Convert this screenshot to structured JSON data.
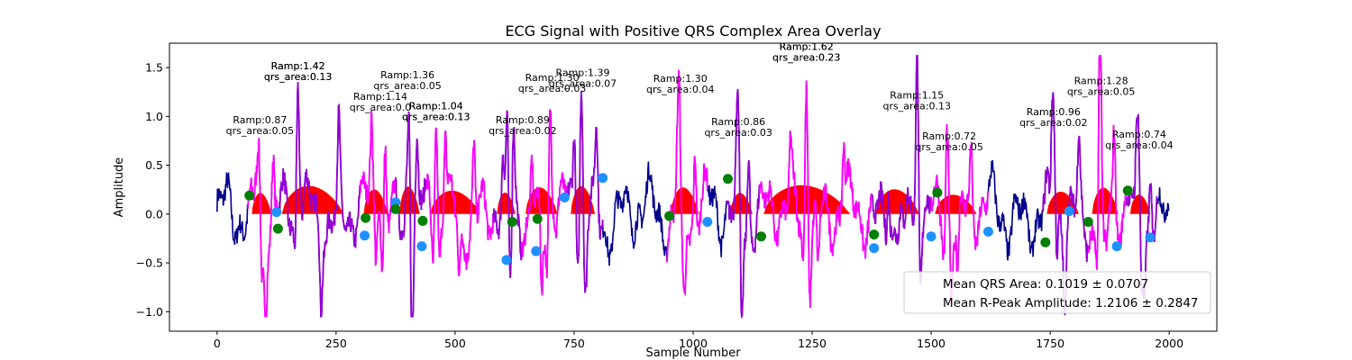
{
  "chart_data": {
    "type": "line",
    "title": "ECG Signal with Positive QRS Complex Area Overlay",
    "xlabel": "Sample Number",
    "ylabel": "Amplitude",
    "xlim": [
      -100,
      2100
    ],
    "ylim": [
      -1.2,
      1.75
    ],
    "xticks": [
      0,
      250,
      500,
      750,
      1000,
      1250,
      1500,
      1750,
      2000
    ],
    "yticks": [
      -1.0,
      -0.5,
      0.0,
      0.5,
      1.0,
      1.5
    ],
    "grid": false,
    "legend": {
      "placement": "lower-right",
      "entries": [
        "Mean QRS Area: 0.1019 ± 0.0707",
        "Mean R-Peak Amplitude: 1.2106 ± 0.2847"
      ]
    },
    "colors": {
      "signal": "#00008b",
      "qrs_overlay_a": "#ff00ff",
      "qrs_overlay_b": "#9400d3",
      "area_fill": "#ff0000",
      "q_point": "#1e90ff",
      "s_point": "#008000"
    },
    "segments": [
      {
        "x0": 65,
        "x1": 128,
        "peak": 87,
        "amp": 0.87
      },
      {
        "x0": 128,
        "x1": 300,
        "peak": 170,
        "amp": 1.42
      },
      {
        "x0": 300,
        "x1": 375,
        "peak": 340,
        "amp": 1.14
      },
      {
        "x0": 375,
        "x1": 440,
        "peak": 403,
        "amp": 1.36
      },
      {
        "x0": 440,
        "x1": 580,
        "peak": 460,
        "amp": 1.04
      },
      {
        "x0": 580,
        "x1": 640,
        "peak": 610,
        "amp": 0.89
      },
      {
        "x0": 640,
        "x1": 735,
        "peak": 700,
        "amp": 1.3
      },
      {
        "x0": 735,
        "x1": 810,
        "peak": 765,
        "amp": 1.39
      },
      {
        "x0": 945,
        "x1": 1030,
        "peak": 970,
        "amp": 1.3
      },
      {
        "x0": 1070,
        "x1": 1140,
        "peak": 1095,
        "amp": 0.86
      },
      {
        "x0": 1140,
        "x1": 1375,
        "peak": 1238,
        "amp": 1.62
      },
      {
        "x0": 1375,
        "x1": 1500,
        "peak": 1470,
        "amp": 1.15
      },
      {
        "x0": 1500,
        "x1": 1620,
        "peak": 1535,
        "amp": 0.72
      },
      {
        "x0": 1735,
        "x1": 1830,
        "peak": 1757,
        "amp": 0.96
      },
      {
        "x0": 1830,
        "x1": 1910,
        "peak": 1855,
        "amp": 1.28
      },
      {
        "x0": 1910,
        "x1": 1975,
        "peak": 1935,
        "amp": 0.74
      }
    ],
    "q_points": [
      {
        "x": 125,
        "y": 0.02
      },
      {
        "x": 310,
        "y": -0.22
      },
      {
        "x": 375,
        "y": 0.12
      },
      {
        "x": 430,
        "y": -0.33
      },
      {
        "x": 608,
        "y": -0.47
      },
      {
        "x": 670,
        "y": -0.38
      },
      {
        "x": 730,
        "y": 0.17
      },
      {
        "x": 810,
        "y": 0.37
      },
      {
        "x": 1030,
        "y": -0.08
      },
      {
        "x": 1380,
        "y": -0.35
      },
      {
        "x": 1500,
        "y": -0.23
      },
      {
        "x": 1620,
        "y": -0.18
      },
      {
        "x": 1790,
        "y": 0.03
      },
      {
        "x": 1890,
        "y": -0.33
      },
      {
        "x": 1960,
        "y": -0.24
      }
    ],
    "s_points": [
      {
        "x": 68,
        "y": 0.19
      },
      {
        "x": 128,
        "y": -0.15
      },
      {
        "x": 312,
        "y": -0.04
      },
      {
        "x": 375,
        "y": 0.05
      },
      {
        "x": 432,
        "y": -0.07
      },
      {
        "x": 620,
        "y": -0.08
      },
      {
        "x": 673,
        "y": -0.05
      },
      {
        "x": 950,
        "y": -0.02
      },
      {
        "x": 1073,
        "y": 0.36
      },
      {
        "x": 1143,
        "y": -0.23
      },
      {
        "x": 1380,
        "y": -0.21
      },
      {
        "x": 1513,
        "y": 0.22
      },
      {
        "x": 1740,
        "y": -0.29
      },
      {
        "x": 1830,
        "y": -0.08
      },
      {
        "x": 1913,
        "y": 0.24
      }
    ],
    "annotations": [
      {
        "x": 90,
        "y": 0.83,
        "lines": [
          "Ramp:0.87",
          "qrs_area:0.05"
        ]
      },
      {
        "x": 170,
        "y": 1.38,
        "lines": [
          "Ramp:1.42",
          "qrs_area:0.13"
        ]
      },
      {
        "x": 170,
        "y": 1.38,
        "lines": [
          "Ramp:1.42",
          "qrs_area:0.13"
        ]
      },
      {
        "x": 343,
        "y": 1.07,
        "lines": [
          "Ramp:1.14",
          "qrs_area:0.0"
        ]
      },
      {
        "x": 400,
        "y": 1.29,
        "lines": [
          "Ramp:1.36",
          "qrs_area:0.05"
        ]
      },
      {
        "x": 460,
        "y": 0.97,
        "lines": [
          "Ramp:1.04",
          "qrs_area:0.13"
        ]
      },
      {
        "x": 460,
        "y": 0.97,
        "lines": [
          "Ramp:1.04",
          "qrs_area:0.13"
        ]
      },
      {
        "x": 642,
        "y": 0.83,
        "lines": [
          "Ramp:0.89",
          "qrs_area:0.02"
        ]
      },
      {
        "x": 704,
        "y": 1.26,
        "lines": [
          "Ramp:1.30",
          "qrs_area:0.03"
        ]
      },
      {
        "x": 768,
        "y": 1.31,
        "lines": [
          "Ramp:1.39",
          "qrs_area:0.07"
        ]
      },
      {
        "x": 973,
        "y": 1.25,
        "lines": [
          "Ramp:1.30",
          "qrs_area:0.04"
        ]
      },
      {
        "x": 1095,
        "y": 0.81,
        "lines": [
          "Ramp:0.86",
          "qrs_area:0.03"
        ]
      },
      {
        "x": 1238,
        "y": 1.58,
        "lines": [
          "Ramp:1.62",
          "qrs_area:0.23"
        ]
      },
      {
        "x": 1238,
        "y": 1.58,
        "lines": [
          "Ramp:1.62",
          "qrs_area:0.23"
        ]
      },
      {
        "x": 1470,
        "y": 1.08,
        "lines": [
          "Ramp:1.15",
          "qrs_area:0.13"
        ]
      },
      {
        "x": 1538,
        "y": 0.66,
        "lines": [
          "Ramp:0.72",
          "qrs_area:0.05"
        ]
      },
      {
        "x": 1757,
        "y": 0.91,
        "lines": [
          "Ramp:0.96",
          "qrs_area:0.02"
        ]
      },
      {
        "x": 1857,
        "y": 1.23,
        "lines": [
          "Ramp:1.28",
          "qrs_area:0.05"
        ]
      },
      {
        "x": 1937,
        "y": 0.68,
        "lines": [
          "Ramp:0.74",
          "qrs_area:0.04"
        ]
      }
    ]
  }
}
